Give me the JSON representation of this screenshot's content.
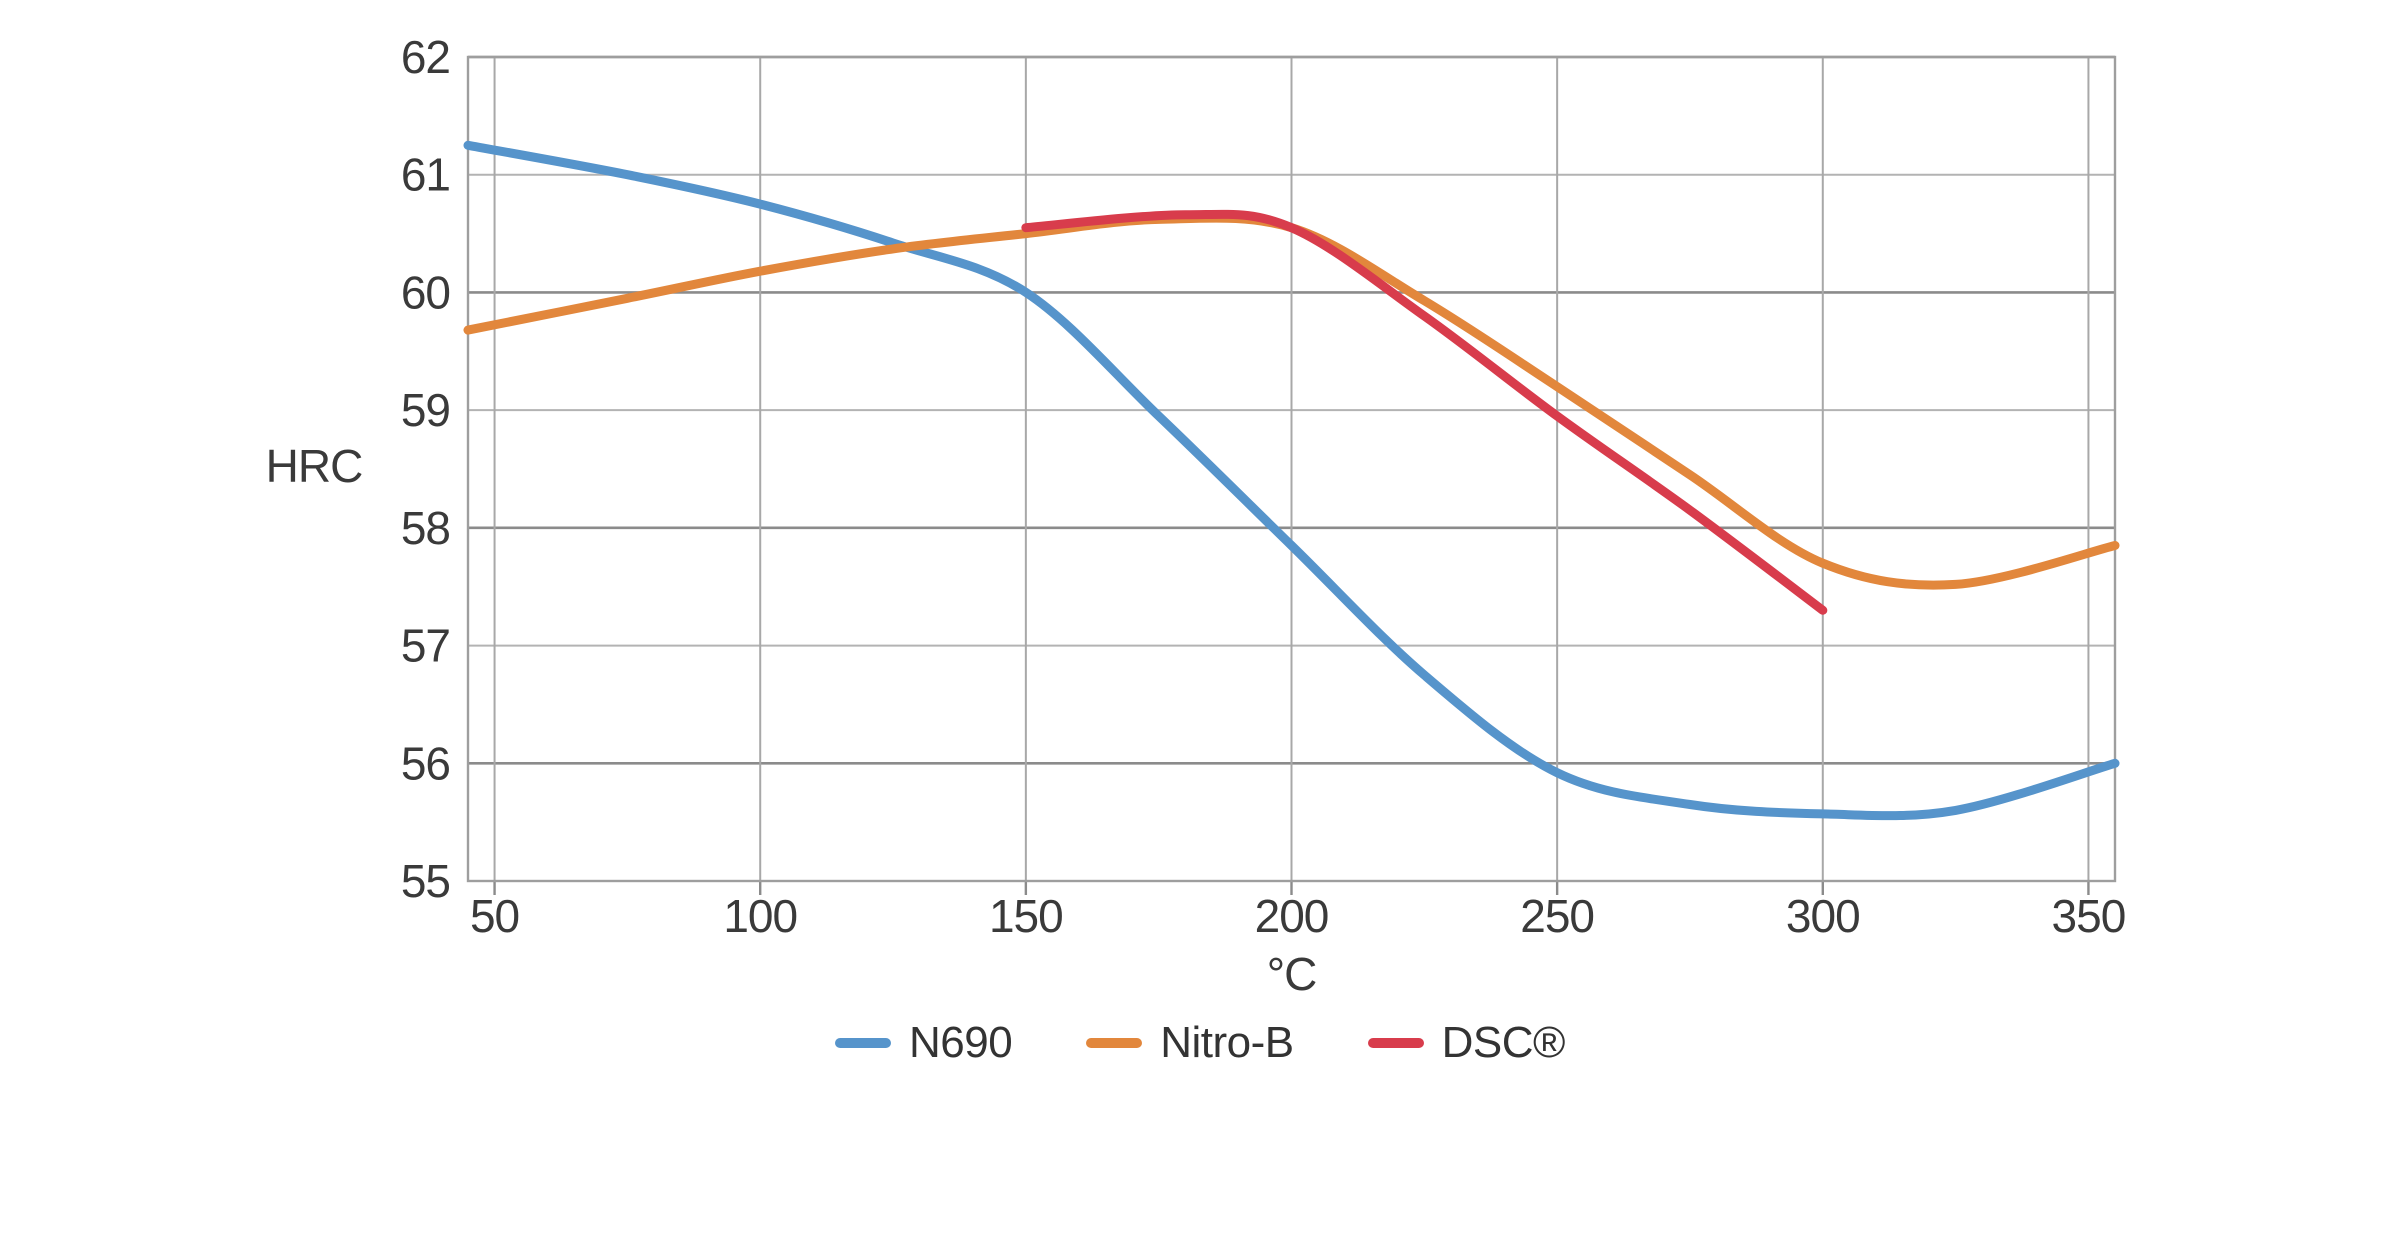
{
  "chart_data": {
    "type": "line",
    "title": "",
    "xlabel": "°C",
    "ylabel": "HRC",
    "xlim": [
      45,
      355
    ],
    "ylim": [
      55,
      62
    ],
    "x_ticks": [
      50,
      100,
      150,
      200,
      250,
      300,
      350
    ],
    "y_ticks": [
      55,
      56,
      57,
      58,
      59,
      60,
      61,
      62
    ],
    "grid": true,
    "legend_position": "bottom-center",
    "colors": {
      "background": "#ffffff",
      "plot_border": "#9e9e9e",
      "gridline_minor": "#b3b3b3",
      "gridline_major": "#8b8b8b",
      "tick_mark": "#8b8b8b",
      "label_text": "#3a3a3a"
    },
    "series": [
      {
        "name": "N690",
        "color": "#5694cb",
        "points": [
          [
            45,
            61.25
          ],
          [
            75,
            61.0
          ],
          [
            100,
            60.75
          ],
          [
            125,
            60.42
          ],
          [
            150,
            60.0
          ],
          [
            175,
            58.95
          ],
          [
            200,
            57.85
          ],
          [
            225,
            56.75
          ],
          [
            250,
            55.92
          ],
          [
            275,
            55.65
          ],
          [
            300,
            55.57
          ],
          [
            325,
            55.6
          ],
          [
            355,
            56.0
          ]
        ]
      },
      {
        "name": "Nitro-B",
        "color": "#e2873c",
        "points": [
          [
            45,
            59.68
          ],
          [
            75,
            59.95
          ],
          [
            100,
            60.18
          ],
          [
            125,
            60.37
          ],
          [
            150,
            60.5
          ],
          [
            175,
            60.62
          ],
          [
            200,
            60.55
          ],
          [
            225,
            59.93
          ],
          [
            250,
            59.2
          ],
          [
            275,
            58.45
          ],
          [
            300,
            57.7
          ],
          [
            325,
            57.52
          ],
          [
            355,
            57.85
          ]
        ]
      },
      {
        "name": "DSC®",
        "color": "#d83c4c",
        "points": [
          [
            150,
            60.55
          ],
          [
            180,
            60.66
          ],
          [
            200,
            60.55
          ],
          [
            225,
            59.8
          ],
          [
            250,
            58.95
          ],
          [
            275,
            58.15
          ],
          [
            300,
            57.3
          ]
        ]
      }
    ]
  },
  "layout_note": "hardness vs tempering temperature curves"
}
